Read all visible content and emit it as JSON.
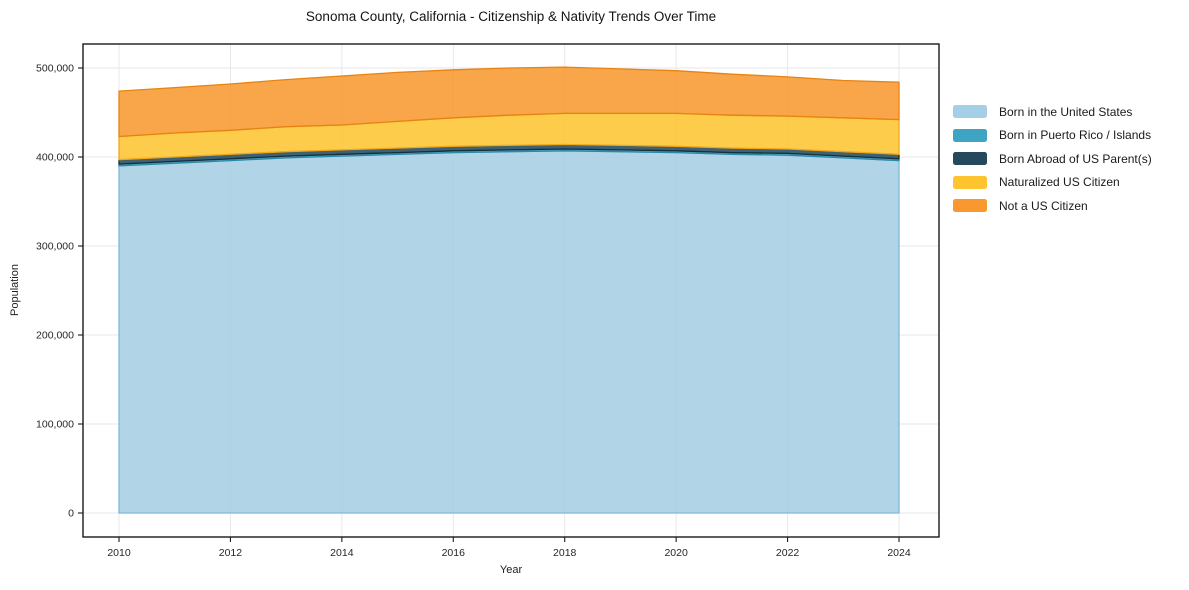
{
  "chart_data": {
    "type": "area",
    "stacked": true,
    "title": "Sonoma County, California - Citizenship & Nativity Trends Over Time",
    "xlabel": "Year",
    "ylabel": "Population",
    "x": [
      2010,
      2011,
      2012,
      2013,
      2014,
      2015,
      2016,
      2017,
      2018,
      2019,
      2020,
      2021,
      2022,
      2023,
      2024
    ],
    "series": [
      {
        "name": "Born in the United States",
        "color": "#a5cfe4",
        "edge_color": "#7fb9d8",
        "values": [
          390000,
          393000,
          396000,
          399000,
          401000,
          403000,
          405000,
          406000,
          407000,
          406000,
          405000,
          403000,
          402000,
          399000,
          396000
        ]
      },
      {
        "name": "Born in Puerto Rico / Islands",
        "color": "#3fa3c4",
        "edge_color": "#2a8aa8",
        "values": [
          2000,
          2000,
          2000,
          2000,
          2000,
          2000,
          2000,
          2000,
          2000,
          2000,
          2000,
          2000,
          2000,
          2000,
          2000
        ]
      },
      {
        "name": "Born Abroad of US Parent(s)",
        "color": "#24495c",
        "edge_color": "#152f3d",
        "values": [
          5000,
          5000,
          5000,
          5000,
          5000,
          5000,
          5000,
          5000,
          5000,
          5000,
          5000,
          5000,
          5000,
          5000,
          5000
        ]
      },
      {
        "name": "Naturalized US Citizen",
        "color": "#fdc42f",
        "edge_color": "#f0a81c",
        "values": [
          26000,
          27000,
          27000,
          28000,
          28000,
          30000,
          32000,
          34000,
          35000,
          36000,
          37000,
          37000,
          37000,
          38000,
          39000
        ]
      },
      {
        "name": "Not a US Citizen",
        "color": "#f8982f",
        "edge_color": "#e78312",
        "values": [
          51000,
          51000,
          52000,
          53000,
          55000,
          55000,
          54000,
          53000,
          52000,
          50000,
          48000,
          46000,
          44000,
          42000,
          42000
        ]
      }
    ],
    "xticks": {
      "values": [
        2010,
        2012,
        2014,
        2016,
        2018,
        2020,
        2022,
        2024
      ],
      "labels": [
        "2010",
        "2012",
        "2014",
        "2016",
        "2018",
        "2020",
        "2022",
        "2024"
      ]
    },
    "yticks": {
      "values": [
        0,
        100000,
        200000,
        300000,
        400000,
        500000
      ],
      "labels": [
        "0",
        "100,000",
        "200,000",
        "300,000",
        "400,000",
        "500,000"
      ]
    },
    "xlim": [
      2010,
      2024
    ],
    "ylim": [
      0,
      500000
    ],
    "grid": true,
    "legend_position": "right",
    "colors": {
      "grid": "#e7e7e7",
      "frame": "#1a1a1a",
      "tick_text": "#262626"
    }
  }
}
